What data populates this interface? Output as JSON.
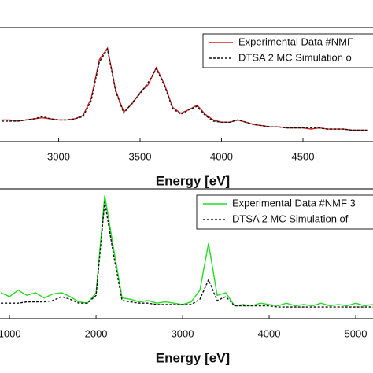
{
  "chart_data": [
    {
      "type": "line",
      "xlabel": "Energy [eV]",
      "xlim": [
        2640,
        4930
      ],
      "xticks": [
        3000,
        3500,
        4000,
        4500
      ],
      "ylim": [
        0,
        1
      ],
      "legend": "upper right",
      "series": [
        {
          "name": "Experimental Data #NMF",
          "color": "#d62020",
          "dash": "solid",
          "x": [
            2650,
            2700,
            2750,
            2800,
            2850,
            2900,
            2950,
            3000,
            3050,
            3100,
            3150,
            3200,
            3250,
            3300,
            3350,
            3400,
            3450,
            3500,
            3550,
            3600,
            3650,
            3700,
            3750,
            3800,
            3850,
            3900,
            3950,
            4000,
            4050,
            4100,
            4150,
            4200,
            4250,
            4300,
            4350,
            4400,
            4450,
            4500,
            4550,
            4600,
            4650,
            4700,
            4750,
            4800,
            4850,
            4900
          ],
          "values": [
            0.19,
            0.19,
            0.18,
            0.19,
            0.2,
            0.21,
            0.2,
            0.19,
            0.19,
            0.2,
            0.23,
            0.38,
            0.72,
            0.82,
            0.45,
            0.26,
            0.33,
            0.43,
            0.5,
            0.65,
            0.5,
            0.3,
            0.25,
            0.28,
            0.32,
            0.24,
            0.19,
            0.17,
            0.17,
            0.19,
            0.17,
            0.15,
            0.14,
            0.13,
            0.13,
            0.12,
            0.12,
            0.12,
            0.11,
            0.12,
            0.11,
            0.11,
            0.11,
            0.1,
            0.1,
            0.1
          ]
        },
        {
          "name": "DTSA 2 MC Simulation o",
          "color": "#111111",
          "dash": "dashed",
          "x": [
            2650,
            2700,
            2750,
            2800,
            2850,
            2900,
            2950,
            3000,
            3050,
            3100,
            3150,
            3200,
            3250,
            3300,
            3350,
            3400,
            3450,
            3500,
            3550,
            3600,
            3650,
            3700,
            3750,
            3800,
            3850,
            3900,
            3950,
            4000,
            4050,
            4100,
            4150,
            4200,
            4250,
            4300,
            4350,
            4400,
            4450,
            4500,
            4550,
            4600,
            4650,
            4700,
            4750,
            4800,
            4850,
            4900
          ],
          "values": [
            0.18,
            0.18,
            0.18,
            0.19,
            0.2,
            0.22,
            0.2,
            0.19,
            0.19,
            0.2,
            0.22,
            0.36,
            0.7,
            0.81,
            0.44,
            0.25,
            0.34,
            0.42,
            0.52,
            0.64,
            0.49,
            0.29,
            0.24,
            0.28,
            0.31,
            0.23,
            0.18,
            0.17,
            0.17,
            0.19,
            0.17,
            0.15,
            0.14,
            0.13,
            0.13,
            0.12,
            0.12,
            0.12,
            0.12,
            0.12,
            0.11,
            0.11,
            0.11,
            0.1,
            0.1,
            0.1
          ]
        }
      ]
    },
    {
      "type": "line",
      "xlabel": "Energy [eV]",
      "xlim": [
        890,
        5200
      ],
      "xticks": [
        1000,
        2000,
        3000,
        4000,
        5000
      ],
      "ylim": [
        0,
        1
      ],
      "legend": "upper right",
      "series": [
        {
          "name": "Experimental Data #NMF 3",
          "color": "#22dd22",
          "dash": "solid",
          "x": [
            900,
            1000,
            1100,
            1200,
            1300,
            1400,
            1500,
            1600,
            1700,
            1800,
            1900,
            2000,
            2100,
            2200,
            2300,
            2400,
            2500,
            2600,
            2700,
            2800,
            2900,
            3000,
            3100,
            3200,
            3300,
            3400,
            3500,
            3600,
            3700,
            3800,
            3900,
            4000,
            4100,
            4200,
            4300,
            4400,
            4500,
            4600,
            4700,
            4800,
            4900,
            5000,
            5100,
            5200
          ],
          "values": [
            0.2,
            0.17,
            0.22,
            0.18,
            0.2,
            0.16,
            0.19,
            0.2,
            0.17,
            0.13,
            0.12,
            0.2,
            0.95,
            0.55,
            0.16,
            0.15,
            0.13,
            0.14,
            0.12,
            0.13,
            0.12,
            0.11,
            0.13,
            0.22,
            0.58,
            0.18,
            0.2,
            0.1,
            0.11,
            0.1,
            0.12,
            0.11,
            0.1,
            0.12,
            0.1,
            0.11,
            0.1,
            0.12,
            0.1,
            0.11,
            0.1,
            0.12,
            0.1,
            0.11
          ]
        },
        {
          "name": "DTSA 2 MC Simulation of",
          "color": "#111111",
          "dash": "dashed",
          "x": [
            900,
            1000,
            1100,
            1200,
            1300,
            1400,
            1500,
            1600,
            1700,
            1800,
            1900,
            2000,
            2100,
            2200,
            2300,
            2400,
            2500,
            2600,
            2700,
            2800,
            2900,
            3000,
            3100,
            3200,
            3300,
            3400,
            3500,
            3600,
            3700,
            3800,
            3900,
            4000,
            4100,
            4200,
            4300,
            4400,
            4500,
            4600,
            4700,
            4800,
            4900,
            5000,
            5100,
            5200
          ],
          "values": [
            0.12,
            0.12,
            0.12,
            0.13,
            0.13,
            0.13,
            0.14,
            0.17,
            0.15,
            0.12,
            0.12,
            0.18,
            0.9,
            0.5,
            0.14,
            0.13,
            0.12,
            0.12,
            0.11,
            0.11,
            0.11,
            0.11,
            0.11,
            0.15,
            0.3,
            0.14,
            0.17,
            0.1,
            0.1,
            0.1,
            0.1,
            0.1,
            0.09,
            0.09,
            0.09,
            0.09,
            0.09,
            0.09,
            0.09,
            0.09,
            0.09,
            0.09,
            0.09,
            0.09
          ]
        }
      ]
    }
  ]
}
